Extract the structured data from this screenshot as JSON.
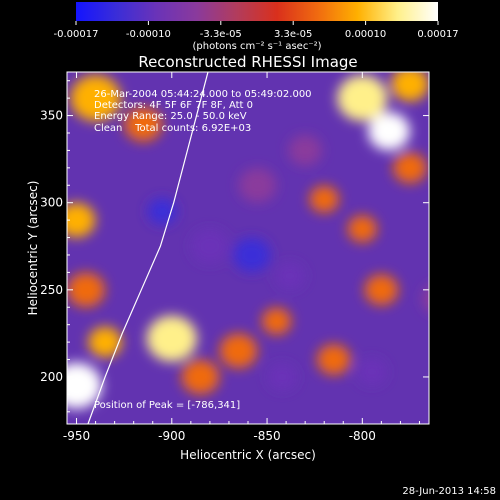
{
  "colorbar": {
    "tick_labels": [
      "-0.00017",
      "-0.00010",
      "-3.3e-05",
      "3.3e-05",
      "0.00010",
      "0.00017"
    ],
    "units": "(photons cm⁻² s⁻¹ asec⁻²)",
    "colors": [
      "#1414ff",
      "#3a2dd8",
      "#6a33b8",
      "#8a3a9c",
      "#b23c5c",
      "#d9301c",
      "#f06a10",
      "#ffb000",
      "#fff08a",
      "#ffffff"
    ]
  },
  "annotations": {
    "time_range": "26-Mar-2004 05:44:24.000 to 05:49:02.000",
    "detectors": "Detectors: 4F 5F 6F 7F 8F, Att 0",
    "energy": "Energy Range: 25.0 - 50.0 keV",
    "clean": "Clean    Total counts: 6.92E+03",
    "peak": "Position of Peak = [-786,341]"
  },
  "footer": {
    "date": "28-Jun-2013 14:58"
  },
  "chart_data": {
    "type": "heatmap",
    "title": "Reconstructed RHESSI Image",
    "xlabel": "Heliocentric X (arcsec)",
    "ylabel": "Heliocentric Y (arcsec)",
    "xlim": [
      -955,
      -765
    ],
    "ylim": [
      173,
      375
    ],
    "x_ticks": [
      -950,
      -900,
      -850,
      -800
    ],
    "y_ticks": [
      200,
      250,
      300,
      350
    ],
    "value_range": [
      -0.00017,
      0.00017
    ],
    "peak": {
      "x": -786,
      "y": 341
    },
    "limb_curve": [
      [
        -944,
        173
      ],
      [
        -935,
        200
      ],
      [
        -926,
        225
      ],
      [
        -916,
        250
      ],
      [
        -906,
        275
      ],
      [
        -899,
        300
      ],
      [
        -893,
        325
      ],
      [
        -887,
        350
      ],
      [
        -881,
        375
      ]
    ],
    "blobs": [
      {
        "x": -786,
        "y": 341,
        "v": 0.00017,
        "r": 10
      },
      {
        "x": -800,
        "y": 360,
        "v": 0.00012,
        "r": 12
      },
      {
        "x": -775,
        "y": 368,
        "v": 0.0001,
        "r": 9
      },
      {
        "x": -775,
        "y": 320,
        "v": 5e-05,
        "r": 8
      },
      {
        "x": -820,
        "y": 302,
        "v": 4e-05,
        "r": 7
      },
      {
        "x": -940,
        "y": 360,
        "v": 0.00011,
        "r": 12
      },
      {
        "x": -915,
        "y": 345,
        "v": 7e-05,
        "r": 9
      },
      {
        "x": -950,
        "y": 290,
        "v": 8e-05,
        "r": 9
      },
      {
        "x": -945,
        "y": 250,
        "v": 6e-05,
        "r": 9
      },
      {
        "x": -950,
        "y": 195,
        "v": 0.00016,
        "r": 12
      },
      {
        "x": -935,
        "y": 220,
        "v": 8e-05,
        "r": 8
      },
      {
        "x": -900,
        "y": 222,
        "v": 0.00013,
        "r": 12
      },
      {
        "x": -885,
        "y": 200,
        "v": 6e-05,
        "r": 9
      },
      {
        "x": -865,
        "y": 215,
        "v": 7e-05,
        "r": 9
      },
      {
        "x": -845,
        "y": 232,
        "v": 5e-05,
        "r": 7
      },
      {
        "x": -815,
        "y": 210,
        "v": 6e-05,
        "r": 8
      },
      {
        "x": -790,
        "y": 250,
        "v": 5e-05,
        "r": 8
      },
      {
        "x": -800,
        "y": 285,
        "v": 4e-05,
        "r": 7
      },
      {
        "x": -905,
        "y": 295,
        "v": -0.00012,
        "r": 7
      },
      {
        "x": -880,
        "y": 275,
        "v": -0.0001,
        "r": 9
      },
      {
        "x": -858,
        "y": 270,
        "v": -0.00012,
        "r": 9
      },
      {
        "x": -838,
        "y": 258,
        "v": -9e-05,
        "r": 7
      },
      {
        "x": -842,
        "y": 200,
        "v": -9e-05,
        "r": 7
      },
      {
        "x": -795,
        "y": 203,
        "v": -8e-05,
        "r": 7
      },
      {
        "x": -855,
        "y": 310,
        "v": -6e-05,
        "r": 9
      },
      {
        "x": -830,
        "y": 330,
        "v": -5e-05,
        "r": 8
      },
      {
        "x": -760,
        "y": 245,
        "v": -5e-05,
        "r": 8
      }
    ]
  }
}
